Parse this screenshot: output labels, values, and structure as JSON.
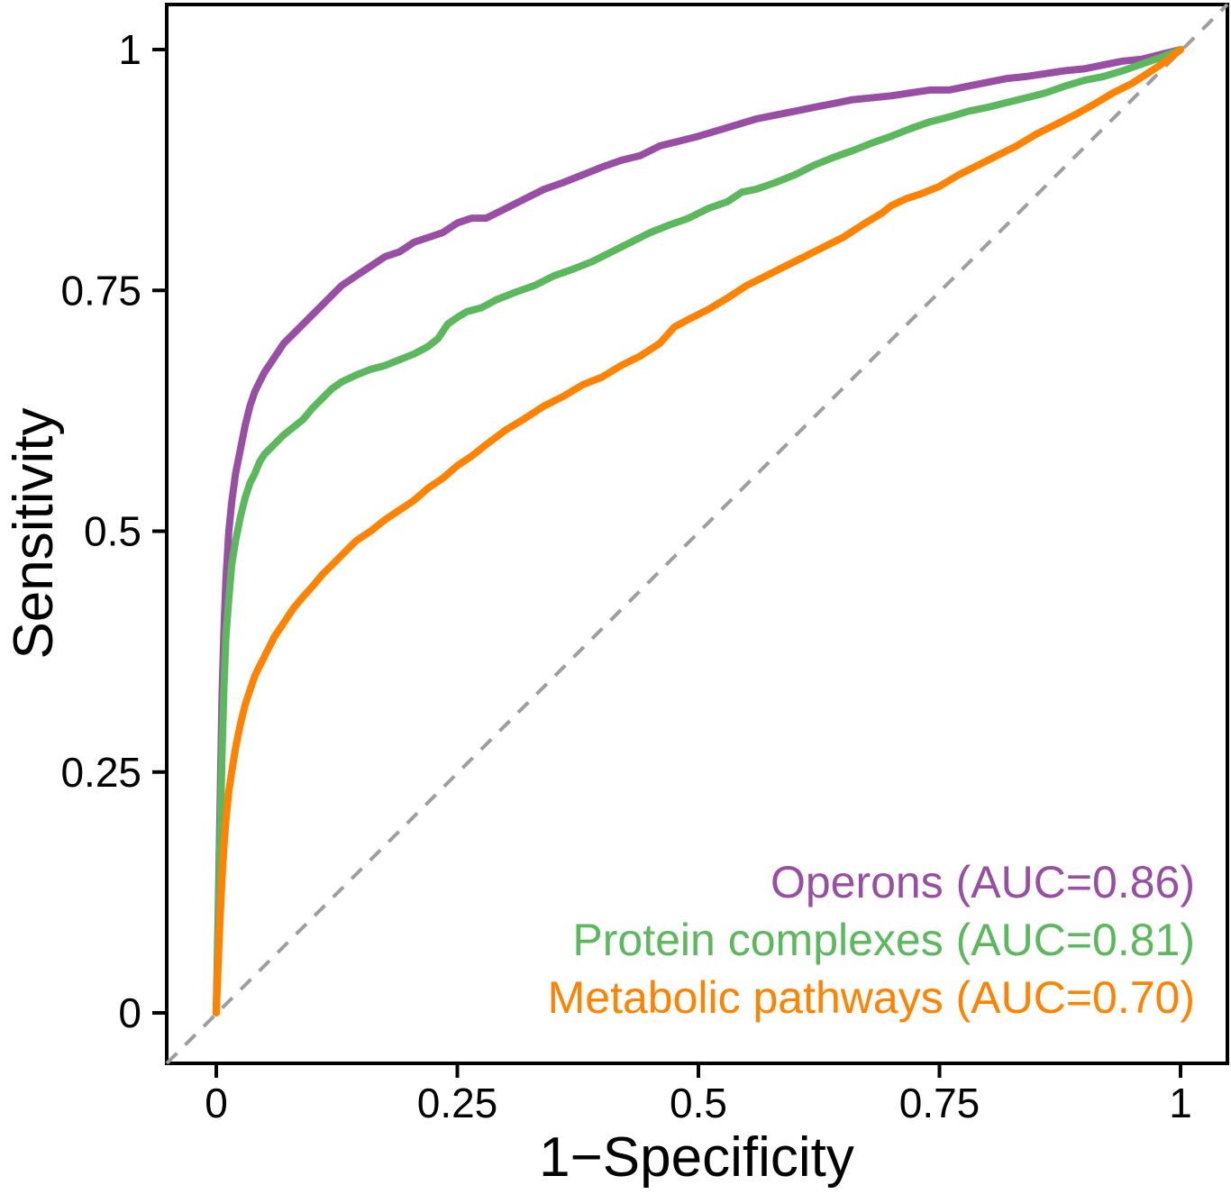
{
  "figure": {
    "background": "#ffffff",
    "panel_border_color": "#000000"
  },
  "chart_data": {
    "type": "line",
    "title": "",
    "xlabel": "1−Specificity",
    "ylabel": "Sensitivity",
    "xlim": [
      0,
      1
    ],
    "ylim": [
      0,
      1
    ],
    "grid": false,
    "legend_position": "bottom-right inside plot",
    "x_ticks": [
      {
        "value": 0,
        "label": "0"
      },
      {
        "value": 0.25,
        "label": "0.25"
      },
      {
        "value": 0.5,
        "label": "0.5"
      },
      {
        "value": 0.75,
        "label": "0.75"
      },
      {
        "value": 1,
        "label": "1"
      }
    ],
    "y_ticks": [
      {
        "value": 0,
        "label": "0"
      },
      {
        "value": 0.25,
        "label": "0.25"
      },
      {
        "value": 0.5,
        "label": "0.5"
      },
      {
        "value": 0.75,
        "label": "0.75"
      },
      {
        "value": 1,
        "label": "1"
      }
    ],
    "reference_line": {
      "type": "diagonal",
      "style": "dashed",
      "color": "#9e9e9e"
    },
    "series": [
      {
        "name": "Operons",
        "auc": 0.86,
        "legend_label": "Operons (AUC=0.86)",
        "color": "#984EA3",
        "points": [
          [
            0,
            0
          ],
          [
            0.002,
            0.1
          ],
          [
            0.004,
            0.22
          ],
          [
            0.006,
            0.33
          ],
          [
            0.008,
            0.4
          ],
          [
            0.01,
            0.45
          ],
          [
            0.013,
            0.5
          ],
          [
            0.016,
            0.53
          ],
          [
            0.02,
            0.56
          ],
          [
            0.025,
            0.585
          ],
          [
            0.03,
            0.61
          ],
          [
            0.035,
            0.63
          ],
          [
            0.04,
            0.645
          ],
          [
            0.045,
            0.655
          ],
          [
            0.05,
            0.665
          ],
          [
            0.06,
            0.68
          ],
          [
            0.07,
            0.695
          ],
          [
            0.08,
            0.705
          ],
          [
            0.09,
            0.715
          ],
          [
            0.1,
            0.725
          ],
          [
            0.11,
            0.735
          ],
          [
            0.12,
            0.745
          ],
          [
            0.13,
            0.755
          ],
          [
            0.145,
            0.765
          ],
          [
            0.16,
            0.775
          ],
          [
            0.175,
            0.785
          ],
          [
            0.19,
            0.79
          ],
          [
            0.205,
            0.8
          ],
          [
            0.22,
            0.805
          ],
          [
            0.235,
            0.81
          ],
          [
            0.25,
            0.82
          ],
          [
            0.265,
            0.825
          ],
          [
            0.28,
            0.825
          ],
          [
            0.3,
            0.835
          ],
          [
            0.32,
            0.845
          ],
          [
            0.34,
            0.855
          ],
          [
            0.36,
            0.862
          ],
          [
            0.38,
            0.87
          ],
          [
            0.4,
            0.878
          ],
          [
            0.42,
            0.885
          ],
          [
            0.44,
            0.89
          ],
          [
            0.46,
            0.9
          ],
          [
            0.48,
            0.905
          ],
          [
            0.5,
            0.91
          ],
          [
            0.52,
            0.916
          ],
          [
            0.54,
            0.922
          ],
          [
            0.56,
            0.928
          ],
          [
            0.58,
            0.932
          ],
          [
            0.6,
            0.936
          ],
          [
            0.62,
            0.94
          ],
          [
            0.64,
            0.944
          ],
          [
            0.66,
            0.948
          ],
          [
            0.68,
            0.95
          ],
          [
            0.7,
            0.952
          ],
          [
            0.72,
            0.955
          ],
          [
            0.74,
            0.958
          ],
          [
            0.76,
            0.958
          ],
          [
            0.78,
            0.962
          ],
          [
            0.8,
            0.966
          ],
          [
            0.82,
            0.97
          ],
          [
            0.84,
            0.972
          ],
          [
            0.86,
            0.975
          ],
          [
            0.88,
            0.978
          ],
          [
            0.9,
            0.98
          ],
          [
            0.92,
            0.984
          ],
          [
            0.94,
            0.988
          ],
          [
            0.96,
            0.99
          ],
          [
            0.98,
            0.995
          ],
          [
            1,
            1
          ]
        ]
      },
      {
        "name": "Protein complexes",
        "auc": 0.81,
        "legend_label": "Protein complexes (AUC=0.81)",
        "color": "#5CB85C",
        "points": [
          [
            0,
            0
          ],
          [
            0.002,
            0.08
          ],
          [
            0.004,
            0.18
          ],
          [
            0.006,
            0.27
          ],
          [
            0.008,
            0.34
          ],
          [
            0.01,
            0.39
          ],
          [
            0.013,
            0.43
          ],
          [
            0.016,
            0.465
          ],
          [
            0.02,
            0.49
          ],
          [
            0.025,
            0.515
          ],
          [
            0.03,
            0.535
          ],
          [
            0.035,
            0.55
          ],
          [
            0.04,
            0.56
          ],
          [
            0.045,
            0.572
          ],
          [
            0.05,
            0.58
          ],
          [
            0.06,
            0.59
          ],
          [
            0.07,
            0.6
          ],
          [
            0.08,
            0.608
          ],
          [
            0.09,
            0.616
          ],
          [
            0.1,
            0.628
          ],
          [
            0.11,
            0.638
          ],
          [
            0.12,
            0.648
          ],
          [
            0.13,
            0.655
          ],
          [
            0.145,
            0.662
          ],
          [
            0.16,
            0.668
          ],
          [
            0.175,
            0.672
          ],
          [
            0.19,
            0.678
          ],
          [
            0.205,
            0.684
          ],
          [
            0.22,
            0.692
          ],
          [
            0.23,
            0.7
          ],
          [
            0.24,
            0.715
          ],
          [
            0.25,
            0.722
          ],
          [
            0.26,
            0.728
          ],
          [
            0.275,
            0.732
          ],
          [
            0.29,
            0.74
          ],
          [
            0.31,
            0.748
          ],
          [
            0.33,
            0.755
          ],
          [
            0.35,
            0.765
          ],
          [
            0.37,
            0.772
          ],
          [
            0.39,
            0.78
          ],
          [
            0.41,
            0.79
          ],
          [
            0.43,
            0.8
          ],
          [
            0.45,
            0.81
          ],
          [
            0.47,
            0.818
          ],
          [
            0.49,
            0.825
          ],
          [
            0.51,
            0.835
          ],
          [
            0.53,
            0.842
          ],
          [
            0.545,
            0.852
          ],
          [
            0.56,
            0.855
          ],
          [
            0.58,
            0.862
          ],
          [
            0.6,
            0.87
          ],
          [
            0.62,
            0.88
          ],
          [
            0.64,
            0.888
          ],
          [
            0.66,
            0.895
          ],
          [
            0.68,
            0.903
          ],
          [
            0.7,
            0.91
          ],
          [
            0.72,
            0.918
          ],
          [
            0.74,
            0.925
          ],
          [
            0.76,
            0.93
          ],
          [
            0.78,
            0.936
          ],
          [
            0.8,
            0.94
          ],
          [
            0.82,
            0.945
          ],
          [
            0.84,
            0.95
          ],
          [
            0.86,
            0.955
          ],
          [
            0.88,
            0.962
          ],
          [
            0.9,
            0.968
          ],
          [
            0.92,
            0.972
          ],
          [
            0.94,
            0.978
          ],
          [
            0.96,
            0.985
          ],
          [
            0.98,
            0.992
          ],
          [
            1,
            1
          ]
        ]
      },
      {
        "name": "Metabolic pathways",
        "auc": 0.7,
        "legend_label": "Metabolic pathways (AUC=0.70)",
        "color": "#FF8300",
        "points": [
          [
            0,
            0
          ],
          [
            0.002,
            0.05
          ],
          [
            0.004,
            0.1
          ],
          [
            0.006,
            0.14
          ],
          [
            0.008,
            0.175
          ],
          [
            0.01,
            0.2
          ],
          [
            0.013,
            0.23
          ],
          [
            0.016,
            0.25
          ],
          [
            0.02,
            0.275
          ],
          [
            0.025,
            0.3
          ],
          [
            0.03,
            0.32
          ],
          [
            0.035,
            0.335
          ],
          [
            0.04,
            0.35
          ],
          [
            0.045,
            0.36
          ],
          [
            0.05,
            0.37
          ],
          [
            0.06,
            0.39
          ],
          [
            0.07,
            0.405
          ],
          [
            0.08,
            0.42
          ],
          [
            0.09,
            0.432
          ],
          [
            0.1,
            0.443
          ],
          [
            0.11,
            0.455
          ],
          [
            0.12,
            0.465
          ],
          [
            0.13,
            0.475
          ],
          [
            0.145,
            0.49
          ],
          [
            0.16,
            0.5
          ],
          [
            0.175,
            0.512
          ],
          [
            0.19,
            0.522
          ],
          [
            0.205,
            0.532
          ],
          [
            0.22,
            0.545
          ],
          [
            0.235,
            0.555
          ],
          [
            0.25,
            0.568
          ],
          [
            0.265,
            0.578
          ],
          [
            0.28,
            0.59
          ],
          [
            0.3,
            0.605
          ],
          [
            0.32,
            0.617
          ],
          [
            0.34,
            0.63
          ],
          [
            0.36,
            0.64
          ],
          [
            0.38,
            0.652
          ],
          [
            0.4,
            0.66
          ],
          [
            0.42,
            0.672
          ],
          [
            0.44,
            0.682
          ],
          [
            0.46,
            0.695
          ],
          [
            0.475,
            0.712
          ],
          [
            0.49,
            0.72
          ],
          [
            0.51,
            0.73
          ],
          [
            0.53,
            0.742
          ],
          [
            0.55,
            0.755
          ],
          [
            0.57,
            0.765
          ],
          [
            0.59,
            0.775
          ],
          [
            0.61,
            0.785
          ],
          [
            0.63,
            0.795
          ],
          [
            0.65,
            0.805
          ],
          [
            0.67,
            0.818
          ],
          [
            0.69,
            0.83
          ],
          [
            0.7,
            0.838
          ],
          [
            0.715,
            0.845
          ],
          [
            0.73,
            0.85
          ],
          [
            0.75,
            0.858
          ],
          [
            0.77,
            0.87
          ],
          [
            0.79,
            0.88
          ],
          [
            0.81,
            0.89
          ],
          [
            0.83,
            0.9
          ],
          [
            0.85,
            0.912
          ],
          [
            0.87,
            0.922
          ],
          [
            0.89,
            0.932
          ],
          [
            0.91,
            0.943
          ],
          [
            0.93,
            0.955
          ],
          [
            0.95,
            0.965
          ],
          [
            0.97,
            0.978
          ],
          [
            0.985,
            0.988
          ],
          [
            1,
            1
          ]
        ]
      }
    ]
  }
}
